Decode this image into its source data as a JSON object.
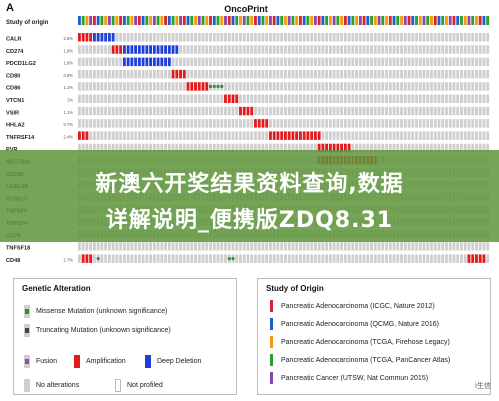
{
  "chart_data": {
    "type": "heatmap",
    "panel_label": "A",
    "title": "OncoPrint",
    "header": "Study of origin",
    "genes": [
      {
        "name": "CALR",
        "pct": "2.6%",
        "alts": [
          {
            "type": "amp",
            "from": 0,
            "to": 3
          },
          {
            "type": "deep",
            "from": 4,
            "to": 9
          }
        ]
      },
      {
        "name": "CD274",
        "pct": "1.8%",
        "alts": [
          {
            "type": "amp",
            "from": 9,
            "to": 11
          },
          {
            "type": "deep",
            "from": 12,
            "to": 26
          }
        ]
      },
      {
        "name": "PDCD1LG2",
        "pct": "1.8%",
        "alts": [
          {
            "type": "deep",
            "from": 12,
            "to": 24
          }
        ]
      },
      {
        "name": "CD80",
        "pct": "0.8%",
        "alts": [
          {
            "type": "amp",
            "from": 25,
            "to": 28
          }
        ]
      },
      {
        "name": "CD86",
        "pct": "1.1%",
        "alts": [
          {
            "type": "amp",
            "from": 29,
            "to": 34
          },
          {
            "type": "mis",
            "from": 35,
            "to": 38
          }
        ]
      },
      {
        "name": "VTCN1",
        "pct": "1%",
        "alts": [
          {
            "type": "amp",
            "from": 39,
            "to": 42
          }
        ]
      },
      {
        "name": "VSIR",
        "pct": "1.1%",
        "alts": [
          {
            "type": "amp",
            "from": 43,
            "to": 46
          }
        ]
      },
      {
        "name": "HHLA2",
        "pct": "0.7%",
        "alts": [
          {
            "type": "amp",
            "from": 47,
            "to": 50
          }
        ]
      },
      {
        "name": "TNFRSF14",
        "pct": "2.4%",
        "alts": [
          {
            "type": "amp",
            "from": 0,
            "to": 2
          },
          {
            "type": "amp",
            "from": 51,
            "to": 64
          }
        ]
      },
      {
        "name": "PVR",
        "pct": "",
        "alts": [
          {
            "type": "amp",
            "from": 64,
            "to": 72
          }
        ]
      },
      {
        "name": "NECTIN2",
        "pct": "",
        "alts": [
          {
            "type": "amp",
            "from": 64,
            "to": 79
          }
        ]
      },
      {
        "name": "CD200",
        "pct": "",
        "alts": []
      },
      {
        "name": "LGALS9",
        "pct": "",
        "alts": []
      },
      {
        "name": "ICOSLG",
        "pct": "",
        "alts": []
      },
      {
        "name": "TNFSF9",
        "pct": "",
        "alts": []
      },
      {
        "name": "TNFSF4",
        "pct": "",
        "alts": []
      },
      {
        "name": "CD70",
        "pct": "",
        "alts": []
      },
      {
        "name": "TNFSF18",
        "pct": "",
        "alts": []
      },
      {
        "name": "CD48",
        "pct": "2.7%",
        "alts": [
          {
            "type": "amp",
            "from": 1,
            "to": 3
          },
          {
            "type": "mis",
            "from": 5,
            "to": 5
          },
          {
            "type": "mis",
            "from": 40,
            "to": 41
          },
          {
            "type": "amp",
            "from": 104,
            "to": 108
          }
        ]
      }
    ],
    "n_samples": 110,
    "study_pattern": [
      "blue",
      "green",
      "orange",
      "purple",
      "red",
      "blue",
      "green",
      "orange",
      "purple",
      "green",
      "orange",
      "red"
    ],
    "colors": {
      "no_alteration": "#cfcfcf",
      "amplification": "#e31a1c",
      "deep_deletion": "#1e3fd8",
      "missense": "#2e8b2e",
      "truncating": "#444444",
      "fusion": "#8e4bb0"
    }
  },
  "genetic_legend": {
    "title": "Genetic Alteration",
    "items": [
      {
        "label": "Missense Mutation (unknown significance)",
        "kind": "mis"
      },
      {
        "label": "Truncating Mutation (unknown significance)",
        "kind": "trunc"
      },
      {
        "label": "Fusion",
        "kind": "fusion"
      },
      {
        "label": "Amplification",
        "kind": "amp"
      },
      {
        "label": "Deep Deletion",
        "kind": "deep"
      },
      {
        "label": "No alterations",
        "kind": "none"
      },
      {
        "label": "Not profiled",
        "kind": "notprof"
      }
    ]
  },
  "study_legend": {
    "title": "Study of Origin",
    "items": [
      {
        "label": "Pancreatic Adenocarcinoma (ICGC, Nature 2012)",
        "color": "#d62728"
      },
      {
        "label": "Pancreatic Adenocarcinoma (QCMG, Nature 2016)",
        "color": "#1f5bd1"
      },
      {
        "label": "Pancreatic Adenocarcinoma (TCGA, Firehose Legacy)",
        "color": "#f39c12"
      },
      {
        "label": "Pancreatic Adenocarcinoma (TCGA, PanCancer Atlas)",
        "color": "#2ca02c"
      },
      {
        "label": "Pancreatic Cancer (UTSW, Nat Commun 2015)",
        "color": "#8e44ad"
      }
    ]
  },
  "overlay": {
    "line1": "新澳六开奖结果资料查询,数据",
    "line2": "详解说明_便携版ZDQ8.31"
  },
  "watermark": "i生信"
}
